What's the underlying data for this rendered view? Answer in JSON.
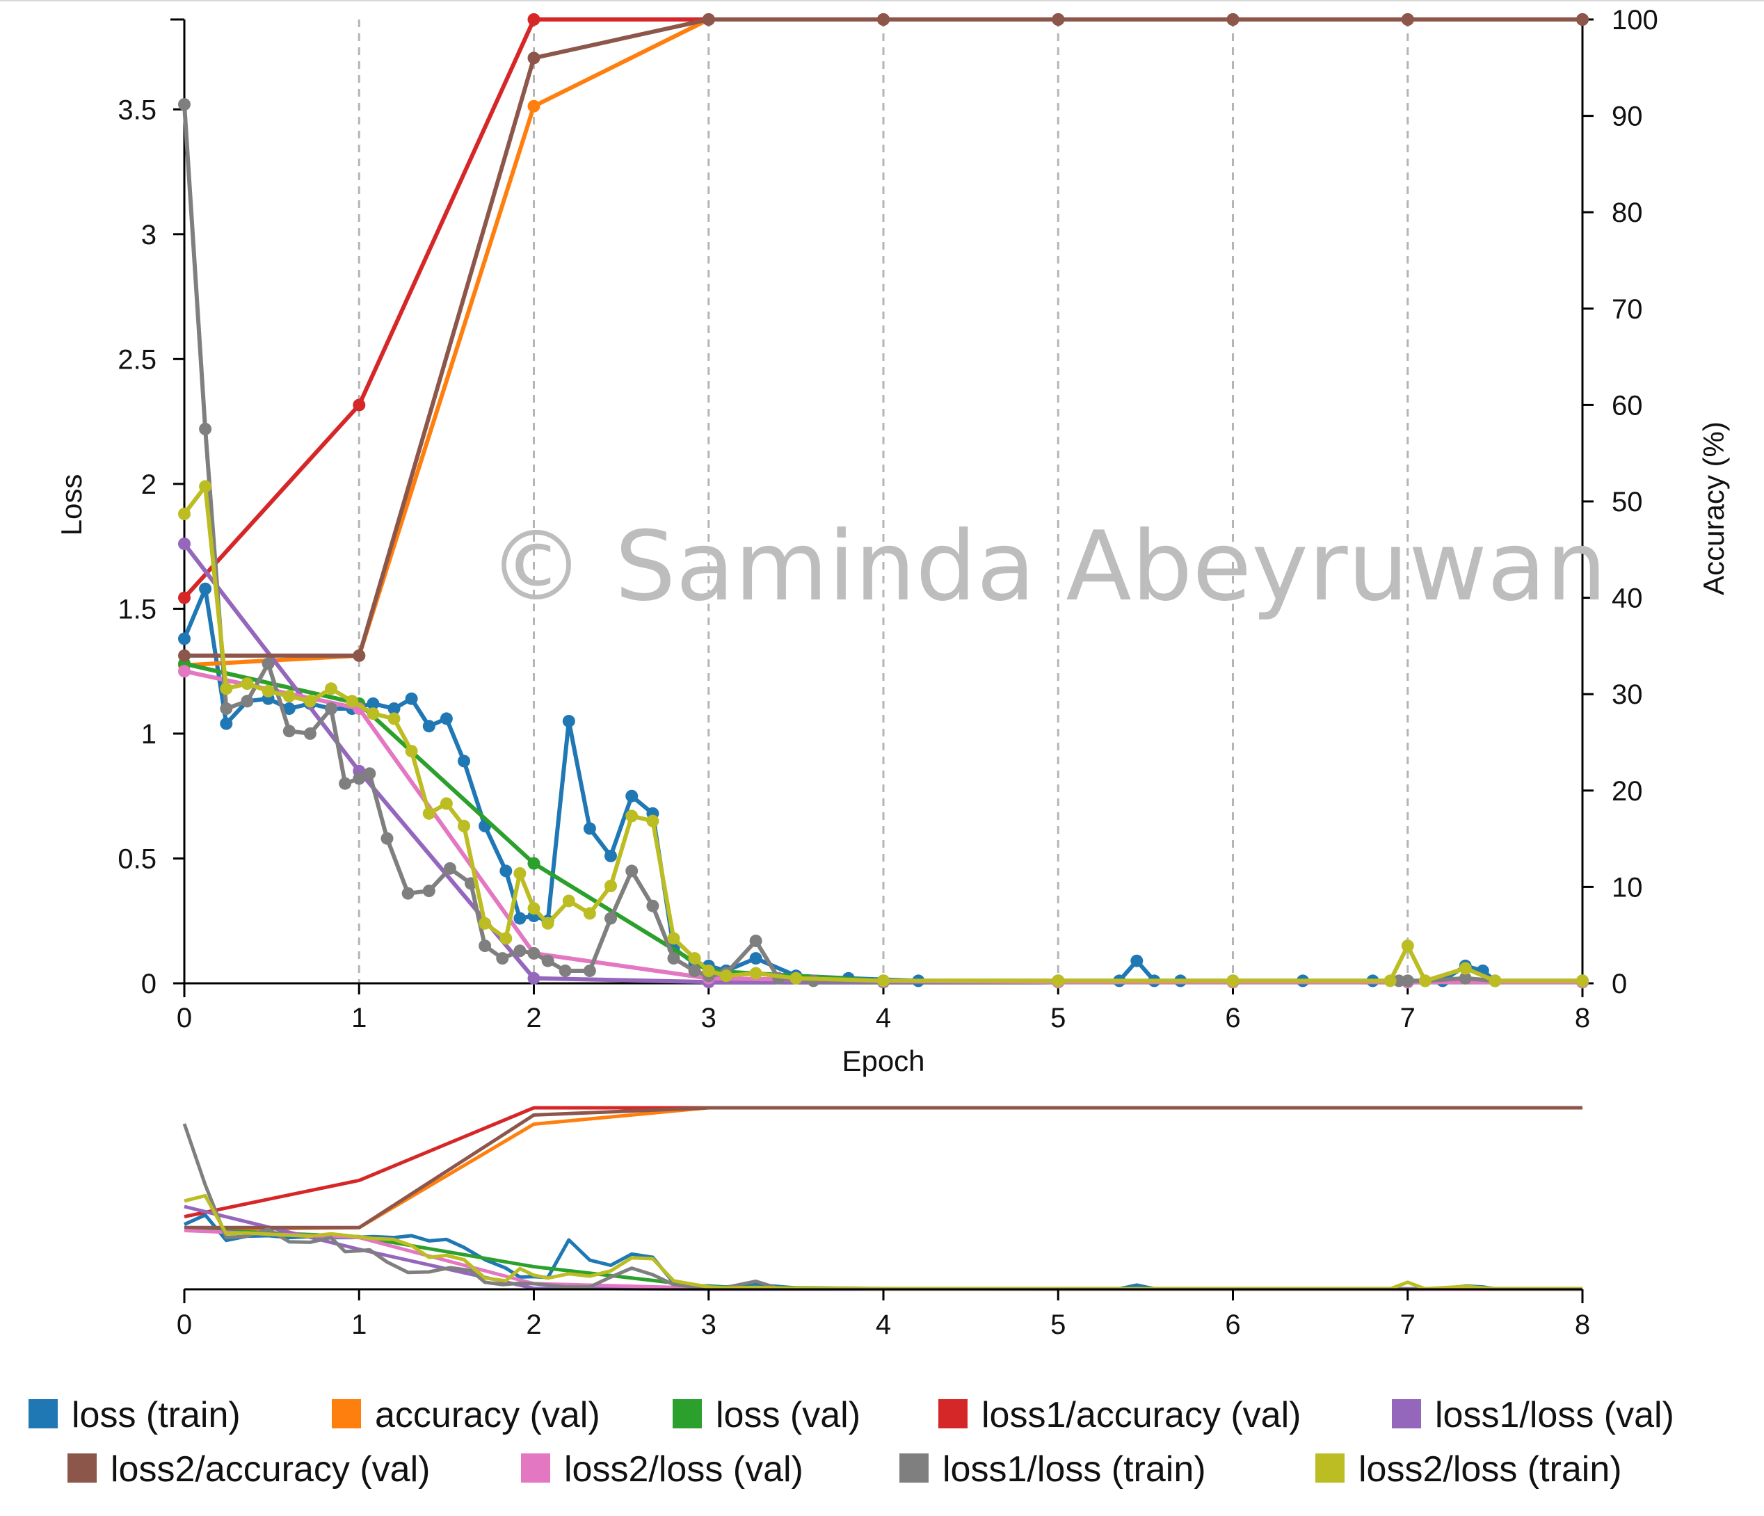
{
  "watermark": "© Saminda Abeyruwan",
  "chart_data": {
    "type": "line",
    "xlabel": "Epoch",
    "ylabel": "Loss",
    "y2label": "Accuracy (%)",
    "xlim": [
      0,
      8
    ],
    "ylim": [
      0,
      3.86
    ],
    "y2lim": [
      0,
      100
    ],
    "x_ticks": [
      "0",
      "1",
      "2",
      "3",
      "4",
      "5",
      "6",
      "7",
      "8"
    ],
    "y_ticks": [
      "0",
      "0.5",
      "1",
      "1.5",
      "2",
      "2.5",
      "3",
      "3.5"
    ],
    "y2_ticks": [
      "0",
      "10",
      "20",
      "30",
      "40",
      "50",
      "60",
      "70",
      "80",
      "90",
      "100"
    ],
    "grid": "vertical dashed at each epoch",
    "legend_position": "bottom",
    "series": [
      {
        "name": "loss (train)",
        "axis": "left",
        "color": "#1f77b4",
        "x": [
          0,
          0.12,
          0.24,
          0.36,
          0.48,
          0.6,
          0.72,
          0.84,
          0.96,
          1.08,
          1.2,
          1.3,
          1.4,
          1.5,
          1.6,
          1.72,
          1.84,
          1.92,
          2.0,
          2.08,
          2.2,
          2.32,
          2.44,
          2.56,
          2.68,
          2.8,
          2.92,
          3.0,
          3.1,
          3.27,
          3.5,
          3.8,
          4.2,
          5.0,
          5.35,
          5.45,
          5.55,
          5.7,
          6.0,
          6.4,
          6.8,
          7.0,
          7.2,
          7.33,
          7.43,
          7.5,
          8.0
        ],
        "values": [
          1.38,
          1.58,
          1.04,
          1.13,
          1.14,
          1.1,
          1.12,
          1.1,
          1.1,
          1.12,
          1.1,
          1.14,
          1.03,
          1.06,
          0.89,
          0.63,
          0.45,
          0.26,
          0.27,
          0.25,
          1.05,
          0.62,
          0.51,
          0.75,
          0.68,
          0.14,
          0.08,
          0.07,
          0.05,
          0.1,
          0.03,
          0.02,
          0.01,
          0.01,
          0.01,
          0.09,
          0.01,
          0.01,
          0.01,
          0.01,
          0.01,
          0.01,
          0.01,
          0.07,
          0.05,
          0.01,
          0.01
        ]
      },
      {
        "name": "accuracy (val)",
        "axis": "right",
        "color": "#ff7f0e",
        "x": [
          0,
          1,
          2,
          3,
          4,
          5,
          6,
          7,
          8
        ],
        "values": [
          33,
          34,
          91,
          100,
          100,
          100,
          100,
          100,
          100
        ]
      },
      {
        "name": "loss (val)",
        "axis": "left",
        "color": "#2ca02c",
        "x": [
          0,
          1,
          2,
          3,
          4,
          5,
          6,
          7,
          8
        ],
        "values": [
          1.28,
          1.12,
          0.48,
          0.05,
          0.01,
          0.005,
          0.005,
          0.005,
          0.005
        ]
      },
      {
        "name": "loss1/accuracy (val)",
        "axis": "right",
        "color": "#d62728",
        "x": [
          0,
          1,
          2,
          3,
          4,
          5,
          6,
          7,
          8
        ],
        "values": [
          40,
          60,
          100,
          100,
          100,
          100,
          100,
          100,
          100
        ]
      },
      {
        "name": "loss1/loss (val)",
        "axis": "left",
        "color": "#9467bd",
        "x": [
          0,
          1,
          2,
          3,
          4,
          5,
          6,
          7,
          8
        ],
        "values": [
          1.76,
          0.85,
          0.02,
          0.005,
          0.005,
          0.005,
          0.005,
          0.005,
          0.005
        ]
      },
      {
        "name": "loss2/accuracy (val)",
        "axis": "right",
        "color": "#8c564b",
        "x": [
          0,
          1,
          2,
          3,
          4,
          5,
          6,
          7,
          8
        ],
        "values": [
          34,
          34,
          96,
          100,
          100,
          100,
          100,
          100,
          100
        ]
      },
      {
        "name": "loss2/loss (val)",
        "axis": "left",
        "color": "#e377c2",
        "x": [
          0,
          1,
          2,
          3,
          4,
          5,
          6,
          7,
          8
        ],
        "values": [
          1.25,
          1.1,
          0.12,
          0.02,
          0.01,
          0.005,
          0.005,
          0.005,
          0.005
        ]
      },
      {
        "name": "loss1/loss (train)",
        "axis": "left",
        "color": "#7f7f7f",
        "x": [
          0,
          0.12,
          0.24,
          0.36,
          0.48,
          0.6,
          0.72,
          0.84,
          0.92,
          1.0,
          1.06,
          1.16,
          1.28,
          1.4,
          1.52,
          1.64,
          1.72,
          1.82,
          1.92,
          2.0,
          2.08,
          2.18,
          2.32,
          2.44,
          2.56,
          2.68,
          2.8,
          2.92,
          3.0,
          3.1,
          3.27,
          3.4,
          3.6,
          4.0,
          5.0,
          6.0,
          6.95,
          7.0,
          7.1,
          7.33,
          7.5,
          8.0
        ],
        "values": [
          3.52,
          2.22,
          1.1,
          1.13,
          1.28,
          1.01,
          1.0,
          1.1,
          0.8,
          0.82,
          0.84,
          0.58,
          0.36,
          0.37,
          0.46,
          0.4,
          0.15,
          0.1,
          0.13,
          0.12,
          0.09,
          0.05,
          0.05,
          0.26,
          0.45,
          0.31,
          0.1,
          0.05,
          0.03,
          0.04,
          0.17,
          0.02,
          0.01,
          0.01,
          0.01,
          0.01,
          0.01,
          0.01,
          0.01,
          0.02,
          0.01,
          0.01
        ]
      },
      {
        "name": "loss2/loss (train)",
        "axis": "left",
        "color": "#bcbd22",
        "x": [
          0,
          0.12,
          0.24,
          0.36,
          0.48,
          0.6,
          0.72,
          0.84,
          0.96,
          1.08,
          1.2,
          1.3,
          1.4,
          1.5,
          1.6,
          1.72,
          1.84,
          1.92,
          2.0,
          2.08,
          2.2,
          2.32,
          2.44,
          2.56,
          2.68,
          2.8,
          2.92,
          3.0,
          3.1,
          3.27,
          3.5,
          4.0,
          5.0,
          6.0,
          6.9,
          7.0,
          7.1,
          7.33,
          7.5,
          8.0
        ],
        "values": [
          1.88,
          1.99,
          1.18,
          1.2,
          1.17,
          1.15,
          1.13,
          1.18,
          1.13,
          1.08,
          1.06,
          0.93,
          0.68,
          0.72,
          0.63,
          0.24,
          0.18,
          0.44,
          0.3,
          0.24,
          0.33,
          0.28,
          0.39,
          0.67,
          0.65,
          0.18,
          0.1,
          0.05,
          0.03,
          0.04,
          0.02,
          0.01,
          0.01,
          0.01,
          0.01,
          0.15,
          0.01,
          0.06,
          0.01,
          0.01
        ]
      }
    ]
  }
}
